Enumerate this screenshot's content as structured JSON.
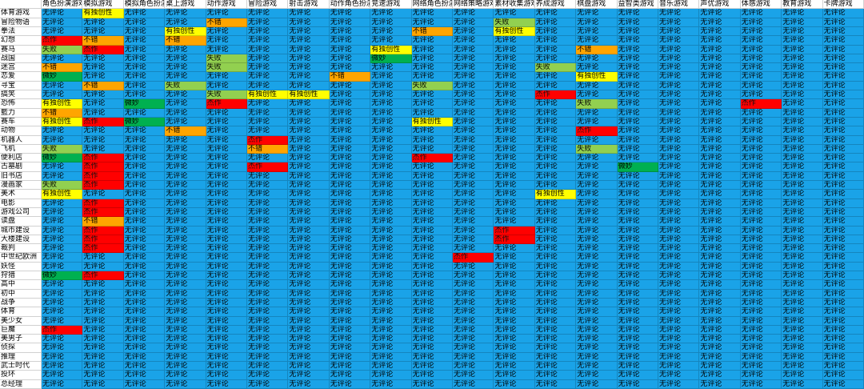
{
  "colors": {
    "无评论": "#1aa3e8",
    "有独创性": "#ffff00",
    "不错": "#ffa500",
    "失败": "#92d050",
    "微妙": "#00b050",
    "杰作": "#ff0000"
  },
  "ratings": [
    "无评论",
    "有独创性",
    "不错",
    "失败",
    "微妙",
    "杰作"
  ],
  "columns": [
    "",
    "角色扮演游戏",
    "模拟游戏",
    "模拟角色扮演",
    "桌上游戏",
    "动作游戏",
    "冒险游戏",
    "射击游戏",
    "动作角色扮演",
    "竞速游戏",
    "网络角色扮演",
    "网络策略游戏",
    "素材收集游戏",
    "养成游戏",
    "棋盘游戏",
    "益智类游戏",
    "音乐游戏",
    "声优游戏",
    "体感游戏",
    "教育游戏",
    "卡牌游戏"
  ],
  "rows": [
    {
      "label": "体育游戏",
      "codes": "01000000000000000000"
    },
    {
      "label": "冒险物语",
      "codes": "00002000000300000000"
    },
    {
      "label": "拳法",
      "codes": "00010000020100000000"
    },
    {
      "label": "幻想",
      "codes": "52020000000000000000"
    },
    {
      "label": "赛马",
      "codes": "35000000100002000000"
    },
    {
      "label": "战国",
      "codes": "00003000400000000000"
    },
    {
      "label": "迷宫",
      "codes": "20003000000030000000"
    },
    {
      "label": "恋爱",
      "codes": "40000002000001000000"
    },
    {
      "label": "寻宝",
      "codes": "02030000030000000000"
    },
    {
      "label": "搞笑",
      "codes": "00003110000050000000"
    },
    {
      "label": "恐怖",
      "codes": "10405000000003000500"
    },
    {
      "label": "籃力",
      "codes": "20000000000000000000"
    },
    {
      "label": "赛车",
      "codes": "15400000010000000000"
    },
    {
      "label": "动物",
      "codes": "00020000000005000000"
    },
    {
      "label": "机器人",
      "codes": "00000500000000000000"
    },
    {
      "label": "飞机",
      "codes": "30000200000003000000"
    },
    {
      "label": "便利店",
      "codes": "45000000050000000000"
    },
    {
      "label": "古墓剧",
      "codes": "05000500000000400000"
    },
    {
      "label": "旧书店",
      "codes": "05000000000000000000"
    },
    {
      "label": "漫画家",
      "codes": "35000000000000000000"
    },
    {
      "label": "美术",
      "codes": "10000000000010000000"
    },
    {
      "label": "电影",
      "codes": "05000000000000000000"
    },
    {
      "label": "游戏公司",
      "codes": "05000000000000000000"
    },
    {
      "label": "读盘",
      "codes": "02000000000000000000"
    },
    {
      "label": "城市建设",
      "codes": "05000000000500000000"
    },
    {
      "label": "大楼建设",
      "codes": "05000000000500000000"
    },
    {
      "label": "裁判",
      "codes": "05000000000000000000"
    },
    {
      "label": "中世纪欧洲",
      "codes": "00000000005000000000"
    },
    {
      "label": "妖怪",
      "codes": "00000000000000000000"
    },
    {
      "label": "狩猎",
      "codes": "45000000000000000000"
    },
    {
      "label": "高中",
      "codes": "00000000000000000000"
    },
    {
      "label": "初中",
      "codes": "00000000000000000000"
    },
    {
      "label": "战争",
      "codes": "00000000000000000000"
    },
    {
      "label": "体育",
      "codes": "00000000000000000000"
    },
    {
      "label": "美少女",
      "codes": "00000000000000000000"
    },
    {
      "label": "巨魔",
      "codes": "50000000000000000000"
    },
    {
      "label": "美男子",
      "codes": "00000000000000000000"
    },
    {
      "label": "侦探",
      "codes": "00000000000000000000"
    },
    {
      "label": "推理",
      "codes": "00000000000000000000"
    },
    {
      "label": "武士时代",
      "codes": "00000000000000000000"
    },
    {
      "label": "投环",
      "codes": "00000000000000000000"
    },
    {
      "label": "总经理",
      "codes": "00000000000000000000"
    }
  ]
}
